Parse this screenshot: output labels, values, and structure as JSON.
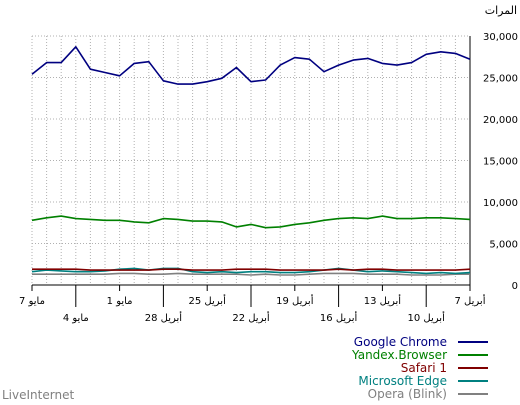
{
  "footer_text": "LiveInternet",
  "chart_data": {
    "type": "line",
    "title": "",
    "ylabel": "المرات",
    "xlabel": "",
    "ylim": [
      0,
      30000
    ],
    "yticks": [
      "0",
      "5,000",
      "10,000",
      "15,000",
      "20,000",
      "25,000",
      "30,000"
    ],
    "ytick_values": [
      0,
      5000,
      10000,
      15000,
      20000,
      25000,
      30000
    ],
    "grid": true,
    "legend_position": "bottom-right",
    "x": [
      "2020-04-07",
      "2020-04-08",
      "2020-04-09",
      "2020-04-10",
      "2020-04-11",
      "2020-04-12",
      "2020-04-13",
      "2020-04-14",
      "2020-04-15",
      "2020-04-16",
      "2020-04-17",
      "2020-04-18",
      "2020-04-19",
      "2020-04-20",
      "2020-04-21",
      "2020-04-22",
      "2020-04-23",
      "2020-04-24",
      "2020-04-25",
      "2020-04-26",
      "2020-04-27",
      "2020-04-28",
      "2020-04-29",
      "2020-04-30",
      "2020-05-01",
      "2020-05-02",
      "2020-05-03",
      "2020-05-04",
      "2020-05-05",
      "2020-05-06",
      "2020-05-07"
    ],
    "x_ticks_top": [
      {
        "date": "2020-04-07",
        "label": "7 أبريل"
      },
      {
        "date": "2020-04-13",
        "label": "13 أبريل"
      },
      {
        "date": "2020-04-19",
        "label": "19 أبريل"
      },
      {
        "date": "2020-04-25",
        "label": "25 أبريل"
      },
      {
        "date": "2020-05-01",
        "label": "1 مايو"
      },
      {
        "date": "2020-05-07",
        "label": "7 مايو"
      }
    ],
    "x_ticks_bottom": [
      {
        "date": "2020-04-10",
        "label": "10 أبريل"
      },
      {
        "date": "2020-04-16",
        "label": "16 أبريل"
      },
      {
        "date": "2020-04-22",
        "label": "22 أبريل"
      },
      {
        "date": "2020-04-28",
        "label": "28 أبريل"
      },
      {
        "date": "2020-05-04",
        "label": "4 مايو"
      }
    ],
    "series": [
      {
        "name": "Google Chrome",
        "color": "#000080",
        "values": [
          27200,
          27900,
          28100,
          27800,
          26800,
          26500,
          26700,
          27300,
          27100,
          26500,
          25700,
          27200,
          27400,
          26500,
          24700,
          24500,
          26200,
          24900,
          24500,
          24200,
          24200,
          24600,
          26900,
          26700,
          25200,
          25600,
          26000,
          28700,
          26800,
          26800,
          25400
        ]
      },
      {
        "name": "Yandex.Browser",
        "color": "#008000",
        "values": [
          7900,
          8000,
          8100,
          8100,
          8000,
          8000,
          8300,
          8000,
          8100,
          8000,
          7800,
          7500,
          7300,
          7000,
          6900,
          7300,
          7000,
          7600,
          7700,
          7700,
          7900,
          8000,
          7500,
          7600,
          7800,
          7800,
          7900,
          8000,
          8300,
          8100,
          7800
        ]
      },
      {
        "name": "Safari 1",
        "color": "#800000",
        "values": [
          1900,
          1800,
          1800,
          1800,
          1800,
          1800,
          1900,
          1900,
          1800,
          1900,
          1800,
          1800,
          1800,
          1800,
          1900,
          1900,
          1900,
          1800,
          1800,
          1800,
          1900,
          1900,
          1800,
          1800,
          1800,
          1800,
          1800,
          1900,
          1900,
          1900,
          1900
        ]
      },
      {
        "name": "Microsoft Edge",
        "color": "#008080",
        "values": [
          1500,
          1400,
          1500,
          1400,
          1500,
          1600,
          1700,
          1600,
          1800,
          2000,
          1800,
          1600,
          1500,
          1500,
          1600,
          1600,
          1500,
          1600,
          1500,
          1600,
          2000,
          2000,
          1800,
          2000,
          1900,
          1700,
          1600,
          1600,
          1700,
          1800,
          1600
        ]
      },
      {
        "name": "Opera (Blink)",
        "color": "#808080",
        "values": [
          1300,
          1300,
          1200,
          1200,
          1200,
          1300,
          1300,
          1300,
          1400,
          1400,
          1400,
          1300,
          1200,
          1200,
          1300,
          1200,
          1300,
          1300,
          1300,
          1300,
          1400,
          1300,
          1300,
          1400,
          1400,
          1300,
          1300,
          1300,
          1300,
          1300,
          1300
        ]
      }
    ]
  }
}
